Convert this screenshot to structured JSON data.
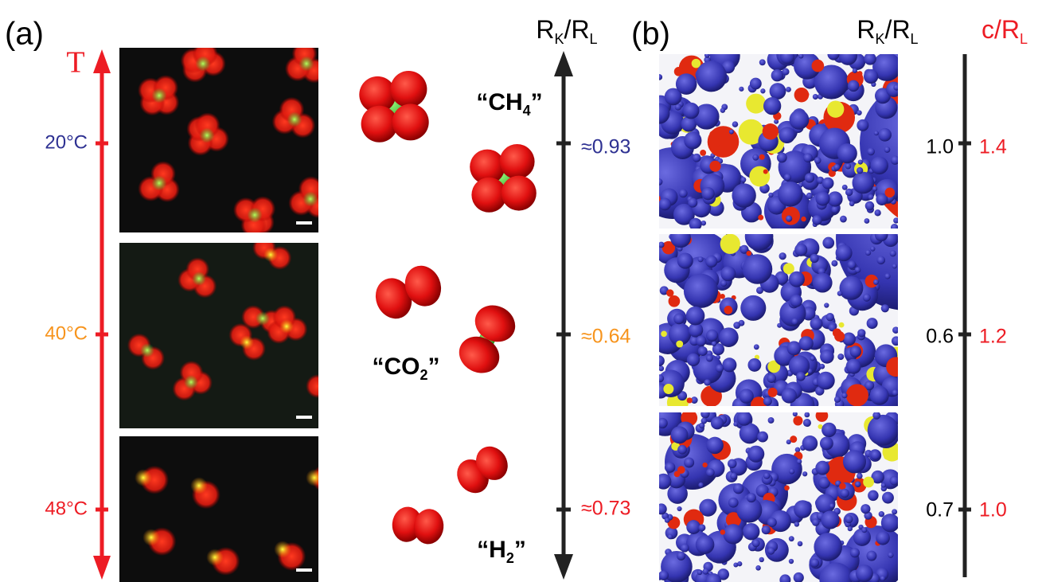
{
  "panel_a": {
    "label": "(a)",
    "temperature_axis": {
      "label": "T",
      "ticks": [
        "20°C",
        "40°C",
        "48°C"
      ]
    },
    "ratio_axis": {
      "label": {
        "r": "R",
        "sub_k": "K",
        "slash_r": "/R",
        "sub_l": "L"
      },
      "ticks": [
        "≈0.93",
        "≈0.64",
        "≈0.73"
      ]
    },
    "molecules": [
      {
        "parts": [
          "“CH",
          "4",
          "”"
        ]
      },
      {
        "parts": [
          "“CO",
          "2",
          "”"
        ]
      },
      {
        "parts": [
          "“H",
          "2",
          "”"
        ]
      }
    ]
  },
  "panel_b": {
    "label": "(b)",
    "ratio_axis": {
      "label": {
        "r": "R",
        "sub_k": "K",
        "slash_r": "/R",
        "sub_l": "L"
      },
      "ticks": [
        "1.0",
        "0.6",
        "0.7"
      ]
    },
    "c_axis": {
      "label": {
        "c_r": "c/R",
        "sub_l": "L"
      },
      "ticks": [
        "1.4",
        "1.2",
        "1.0"
      ]
    }
  }
}
